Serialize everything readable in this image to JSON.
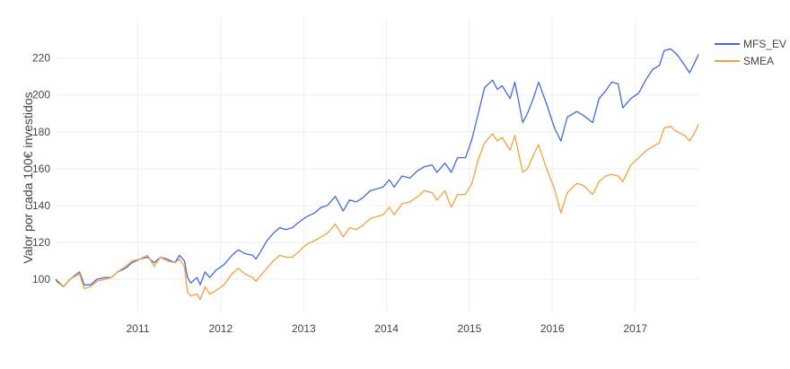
{
  "chart_data": {
    "type": "line",
    "title": "",
    "xlabel": "",
    "ylabel": "Valor por cada 100€ investidos",
    "x_type": "date",
    "xlim": [
      "2010-01-04",
      "2017-10-06"
    ],
    "ylim": [
      84,
      232
    ],
    "x_tick_labels": [
      "2011",
      "2012",
      "2013",
      "2014",
      "2015",
      "2016",
      "2017"
    ],
    "y_tick_values": [
      100,
      120,
      140,
      160,
      180,
      200,
      220
    ],
    "grid": true,
    "legend_position": "top-right",
    "series": [
      {
        "name": "MFS_EV",
        "color": "#4169e1",
        "points": [
          [
            "2010-01-04",
            100
          ],
          [
            "2010-02-08",
            96
          ],
          [
            "2010-03-08",
            100
          ],
          [
            "2010-04-19",
            104
          ],
          [
            "2010-05-10",
            97
          ],
          [
            "2010-06-07",
            97
          ],
          [
            "2010-07-05",
            100
          ],
          [
            "2010-08-09",
            101
          ],
          [
            "2010-09-06",
            101
          ],
          [
            "2010-10-04",
            104
          ],
          [
            "2010-11-08",
            106
          ],
          [
            "2010-12-06",
            109
          ],
          [
            "2011-01-10",
            111
          ],
          [
            "2011-02-14",
            112
          ],
          [
            "2011-03-14",
            109
          ],
          [
            "2011-04-11",
            112
          ],
          [
            "2011-05-09",
            111
          ],
          [
            "2011-06-13",
            109
          ],
          [
            "2011-07-04",
            113
          ],
          [
            "2011-07-25",
            110
          ],
          [
            "2011-08-08",
            101
          ],
          [
            "2011-08-22",
            98
          ],
          [
            "2011-09-19",
            101
          ],
          [
            "2011-10-03",
            97
          ],
          [
            "2011-10-24",
            104
          ],
          [
            "2011-11-14",
            101
          ],
          [
            "2011-12-12",
            105
          ],
          [
            "2012-01-16",
            108
          ],
          [
            "2012-02-20",
            113
          ],
          [
            "2012-03-19",
            116
          ],
          [
            "2012-04-16",
            114
          ],
          [
            "2012-05-21",
            113
          ],
          [
            "2012-06-04",
            111
          ],
          [
            "2012-06-25",
            115
          ],
          [
            "2012-07-23",
            121
          ],
          [
            "2012-08-20",
            125
          ],
          [
            "2012-09-17",
            128
          ],
          [
            "2012-10-15",
            127
          ],
          [
            "2012-11-12",
            128
          ],
          [
            "2012-12-10",
            131
          ],
          [
            "2013-01-14",
            134
          ],
          [
            "2013-02-18",
            136
          ],
          [
            "2013-03-18",
            139
          ],
          [
            "2013-04-15",
            140
          ],
          [
            "2013-05-20",
            145
          ],
          [
            "2013-06-24",
            137
          ],
          [
            "2013-07-22",
            143
          ],
          [
            "2013-08-19",
            142
          ],
          [
            "2013-09-16",
            144
          ],
          [
            "2013-10-21",
            148
          ],
          [
            "2013-11-18",
            149
          ],
          [
            "2013-12-16",
            150
          ],
          [
            "2014-01-13",
            154
          ],
          [
            "2014-02-03",
            150
          ],
          [
            "2014-03-10",
            156
          ],
          [
            "2014-04-14",
            155
          ],
          [
            "2014-05-19",
            159
          ],
          [
            "2014-06-16",
            161
          ],
          [
            "2014-07-21",
            162
          ],
          [
            "2014-08-11",
            158
          ],
          [
            "2014-09-15",
            163
          ],
          [
            "2014-10-13",
            158
          ],
          [
            "2014-11-10",
            166
          ],
          [
            "2014-12-15",
            166
          ],
          [
            "2015-01-12",
            176
          ],
          [
            "2015-02-09",
            190
          ],
          [
            "2015-03-09",
            204
          ],
          [
            "2015-04-13",
            208
          ],
          [
            "2015-05-04",
            203
          ],
          [
            "2015-05-25",
            205
          ],
          [
            "2015-06-29",
            198
          ],
          [
            "2015-07-20",
            207
          ],
          [
            "2015-08-24",
            185
          ],
          [
            "2015-09-14",
            190
          ],
          [
            "2015-10-12",
            199
          ],
          [
            "2015-11-02",
            207
          ],
          [
            "2015-12-07",
            195
          ],
          [
            "2016-01-11",
            182
          ],
          [
            "2016-02-08",
            175
          ],
          [
            "2016-03-07",
            188
          ],
          [
            "2016-04-18",
            191
          ],
          [
            "2016-05-16",
            189
          ],
          [
            "2016-06-27",
            185
          ],
          [
            "2016-07-25",
            198
          ],
          [
            "2016-08-22",
            202
          ],
          [
            "2016-09-19",
            207
          ],
          [
            "2016-10-17",
            206
          ],
          [
            "2016-11-07",
            193
          ],
          [
            "2016-12-12",
            198
          ],
          [
            "2017-01-16",
            201
          ],
          [
            "2017-02-20",
            209
          ],
          [
            "2017-03-20",
            214
          ],
          [
            "2017-04-17",
            216
          ],
          [
            "2017-05-08",
            224
          ],
          [
            "2017-06-05",
            225
          ],
          [
            "2017-07-03",
            222
          ],
          [
            "2017-08-07",
            216
          ],
          [
            "2017-08-28",
            212
          ],
          [
            "2017-09-18",
            217
          ],
          [
            "2017-10-06",
            222
          ]
        ]
      },
      {
        "name": "SMEA",
        "color": "#f5a03c",
        "points": [
          [
            "2010-01-04",
            99
          ],
          [
            "2010-02-08",
            96
          ],
          [
            "2010-03-08",
            100
          ],
          [
            "2010-04-19",
            103
          ],
          [
            "2010-05-10",
            95
          ],
          [
            "2010-06-07",
            96
          ],
          [
            "2010-07-05",
            99
          ],
          [
            "2010-08-09",
            100
          ],
          [
            "2010-09-06",
            101
          ],
          [
            "2010-10-04",
            104
          ],
          [
            "2010-11-08",
            107
          ],
          [
            "2010-12-06",
            110
          ],
          [
            "2011-01-10",
            111
          ],
          [
            "2011-02-14",
            113
          ],
          [
            "2011-03-14",
            107
          ],
          [
            "2011-04-11",
            112
          ],
          [
            "2011-05-09",
            110
          ],
          [
            "2011-06-13",
            109
          ],
          [
            "2011-07-04",
            111
          ],
          [
            "2011-07-25",
            107
          ],
          [
            "2011-08-08",
            93
          ],
          [
            "2011-08-22",
            91
          ],
          [
            "2011-09-19",
            92
          ],
          [
            "2011-10-03",
            89
          ],
          [
            "2011-10-24",
            96
          ],
          [
            "2011-11-14",
            92
          ],
          [
            "2011-12-12",
            94
          ],
          [
            "2012-01-16",
            97
          ],
          [
            "2012-02-20",
            103
          ],
          [
            "2012-03-19",
            106
          ],
          [
            "2012-04-16",
            103
          ],
          [
            "2012-05-21",
            101
          ],
          [
            "2012-06-04",
            99
          ],
          [
            "2012-06-25",
            102
          ],
          [
            "2012-07-23",
            106
          ],
          [
            "2012-08-20",
            110
          ],
          [
            "2012-09-17",
            113
          ],
          [
            "2012-10-15",
            112
          ],
          [
            "2012-11-12",
            112
          ],
          [
            "2012-12-10",
            115
          ],
          [
            "2013-01-14",
            119
          ],
          [
            "2013-02-18",
            121
          ],
          [
            "2013-03-18",
            123
          ],
          [
            "2013-04-15",
            125
          ],
          [
            "2013-05-20",
            130
          ],
          [
            "2013-06-24",
            123
          ],
          [
            "2013-07-22",
            128
          ],
          [
            "2013-08-19",
            127
          ],
          [
            "2013-09-16",
            129
          ],
          [
            "2013-10-21",
            133
          ],
          [
            "2013-11-18",
            134
          ],
          [
            "2013-12-16",
            135
          ],
          [
            "2014-01-13",
            139
          ],
          [
            "2014-02-03",
            135
          ],
          [
            "2014-03-10",
            141
          ],
          [
            "2014-04-14",
            142
          ],
          [
            "2014-05-19",
            145
          ],
          [
            "2014-06-16",
            148
          ],
          [
            "2014-07-21",
            147
          ],
          [
            "2014-08-11",
            143
          ],
          [
            "2014-09-15",
            148
          ],
          [
            "2014-10-13",
            139
          ],
          [
            "2014-11-10",
            146
          ],
          [
            "2014-12-15",
            146
          ],
          [
            "2015-01-12",
            152
          ],
          [
            "2015-02-09",
            165
          ],
          [
            "2015-03-09",
            174
          ],
          [
            "2015-04-13",
            179
          ],
          [
            "2015-05-04",
            175
          ],
          [
            "2015-05-25",
            177
          ],
          [
            "2015-06-29",
            170
          ],
          [
            "2015-07-20",
            178
          ],
          [
            "2015-08-24",
            158
          ],
          [
            "2015-09-14",
            160
          ],
          [
            "2015-10-12",
            168
          ],
          [
            "2015-11-02",
            173
          ],
          [
            "2015-12-07",
            160
          ],
          [
            "2016-01-11",
            149
          ],
          [
            "2016-02-08",
            136
          ],
          [
            "2016-03-07",
            147
          ],
          [
            "2016-04-18",
            152
          ],
          [
            "2016-05-16",
            151
          ],
          [
            "2016-06-27",
            146
          ],
          [
            "2016-07-25",
            153
          ],
          [
            "2016-08-22",
            156
          ],
          [
            "2016-09-19",
            157
          ],
          [
            "2016-10-17",
            156
          ],
          [
            "2016-11-07",
            153
          ],
          [
            "2016-12-12",
            162
          ],
          [
            "2017-01-16",
            166
          ],
          [
            "2017-02-20",
            170
          ],
          [
            "2017-03-20",
            172
          ],
          [
            "2017-04-17",
            174
          ],
          [
            "2017-05-08",
            182
          ],
          [
            "2017-06-05",
            183
          ],
          [
            "2017-07-03",
            180
          ],
          [
            "2017-08-07",
            178
          ],
          [
            "2017-08-28",
            175
          ],
          [
            "2017-09-18",
            179
          ],
          [
            "2017-10-06",
            184
          ]
        ]
      }
    ]
  }
}
